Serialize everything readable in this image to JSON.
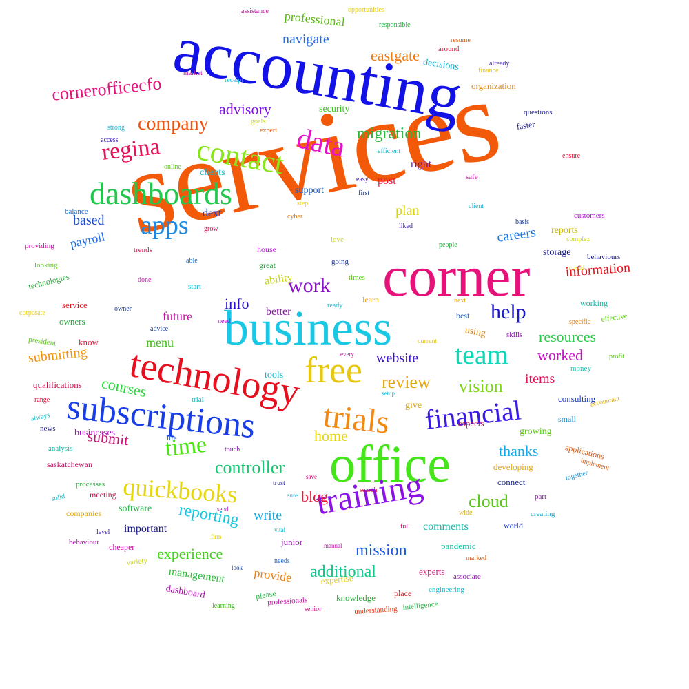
{
  "words": [
    {
      "text": "services",
      "color": "#f25a0a"
    },
    {
      "text": "accounting",
      "color": "#1212e6"
    },
    {
      "text": "corner",
      "color": "#e6127a"
    },
    {
      "text": "office",
      "color": "#44e61a"
    },
    {
      "text": "business",
      "color": "#1ac8e6"
    },
    {
      "text": "technology",
      "color": "#e60f1e"
    },
    {
      "text": "subscriptions",
      "color": "#1a3ee6"
    },
    {
      "text": "training",
      "color": "#8a12e6"
    },
    {
      "text": "free",
      "color": "#e6c812"
    },
    {
      "text": "trials",
      "color": "#f28a12"
    },
    {
      "text": "financial",
      "color": "#3a1ae6"
    },
    {
      "text": "contact",
      "color": "#8ae61a"
    },
    {
      "text": "dashboards",
      "color": "#22c84e"
    },
    {
      "text": "data",
      "color": "#e612c8"
    },
    {
      "text": "quickbooks",
      "color": "#e6d612"
    },
    {
      "text": "team",
      "color": "#12d6b8"
    },
    {
      "text": "apps",
      "color": "#1a8ae6"
    },
    {
      "text": "regina",
      "color": "#e6125a"
    },
    {
      "text": "company",
      "color": "#f2520a"
    },
    {
      "text": "cornerofficecfo",
      "color": "#e6127a"
    },
    {
      "text": "migration",
      "color": "#28b83a"
    },
    {
      "text": "work",
      "color": "#8a12c8"
    },
    {
      "text": "help",
      "color": "#1a1ac8"
    },
    {
      "text": "time",
      "color": "#4ae612"
    },
    {
      "text": "controller",
      "color": "#18c872"
    },
    {
      "text": "reporting",
      "color": "#12c8e6"
    },
    {
      "text": "cloud",
      "color": "#58c81a"
    },
    {
      "text": "review",
      "color": "#e6a812"
    },
    {
      "text": "vision",
      "color": "#7ad612"
    },
    {
      "text": "courses",
      "color": "#2ad63a"
    },
    {
      "text": "submitting",
      "color": "#f2920a"
    },
    {
      "text": "submit",
      "color": "#c8127a"
    },
    {
      "text": "info",
      "color": "#2a12c8"
    },
    {
      "text": "blog",
      "color": "#e61a3a"
    },
    {
      "text": "mission",
      "color": "#1a5ae6"
    },
    {
      "text": "additional",
      "color": "#12c88a"
    },
    {
      "text": "experience",
      "color": "#3ad612"
    },
    {
      "text": "write",
      "color": "#12a8e6"
    },
    {
      "text": "thanks",
      "color": "#1aa8e6"
    },
    {
      "text": "home",
      "color": "#e6d612"
    },
    {
      "text": "worked",
      "color": "#c812c8"
    },
    {
      "text": "items",
      "color": "#e6125a"
    },
    {
      "text": "resources",
      "color": "#28c848"
    },
    {
      "text": "information",
      "color": "#e6121a"
    },
    {
      "text": "website",
      "color": "#3a12c8"
    },
    {
      "text": "careers",
      "color": "#1a7ae6"
    },
    {
      "text": "advisory",
      "color": "#7a12e6"
    },
    {
      "text": "navigate",
      "color": "#2a6ae6"
    },
    {
      "text": "eastgate",
      "color": "#f27a0a"
    },
    {
      "text": "professional",
      "color": "#58b812"
    },
    {
      "text": "payroll",
      "color": "#1a6ae6"
    },
    {
      "text": "based",
      "color": "#1a4ac8"
    },
    {
      "text": "menu",
      "color": "#3ab812"
    },
    {
      "text": "future",
      "color": "#c812a8"
    },
    {
      "text": "plan",
      "color": "#d6d612"
    },
    {
      "text": "dext",
      "color": "#1a3ac8"
    },
    {
      "text": "provide",
      "color": "#f27a0a"
    },
    {
      "text": "management",
      "color": "#2ab83a"
    },
    {
      "text": "comments",
      "color": "#12b8a8"
    },
    {
      "text": "important",
      "color": "#1a1a8a"
    },
    {
      "text": "businesses",
      "color": "#a812c8"
    },
    {
      "text": "post",
      "color": "#e6123a"
    },
    {
      "text": "right",
      "color": "#6a12c8"
    },
    {
      "text": "better",
      "color": "#8a12a8"
    },
    {
      "text": "ability",
      "color": "#c8d612"
    },
    {
      "text": "clients",
      "color": "#12b8c8"
    },
    {
      "text": "support",
      "color": "#1a5ac8"
    },
    {
      "text": "security",
      "color": "#3ac81a"
    },
    {
      "text": "decisions",
      "color": "#12a8c8"
    },
    {
      "text": "organization",
      "color": "#d68a12"
    },
    {
      "text": "storage",
      "color": "#1a1a8a"
    },
    {
      "text": "reports",
      "color": "#c8b812"
    },
    {
      "text": "using",
      "color": "#d67a12"
    },
    {
      "text": "consulting",
      "color": "#1a3ac8"
    },
    {
      "text": "growing",
      "color": "#58c812"
    },
    {
      "text": "connect",
      "color": "#1a2a8a"
    },
    {
      "text": "developing",
      "color": "#e6a812"
    },
    {
      "text": "software",
      "color": "#28b848"
    },
    {
      "text": "dashboard",
      "color": "#a812a8"
    },
    {
      "text": "knowledge",
      "color": "#28a83a"
    },
    {
      "text": "expertise",
      "color": "#e6c812"
    },
    {
      "text": "junior",
      "color": "#8a1aa8"
    },
    {
      "text": "experts",
      "color": "#c8126a"
    },
    {
      "text": "pandemic",
      "color": "#12c8a8"
    },
    {
      "text": "place",
      "color": "#e6121a"
    },
    {
      "text": "tools",
      "color": "#12b8d6"
    },
    {
      "text": "give",
      "color": "#d6a812"
    },
    {
      "text": "aspects",
      "color": "#c8124a"
    },
    {
      "text": "world",
      "color": "#1a3ac8"
    },
    {
      "text": "part",
      "color": "#8a1aa8"
    },
    {
      "text": "small",
      "color": "#1a8ac8"
    },
    {
      "text": "applications",
      "color": "#d65a12"
    },
    {
      "text": "skills",
      "color": "#8a12a8"
    },
    {
      "text": "best",
      "color": "#1a5ac8"
    },
    {
      "text": "working",
      "color": "#12b8a8"
    },
    {
      "text": "effective",
      "color": "#58c812"
    },
    {
      "text": "money",
      "color": "#12c8b8"
    },
    {
      "text": "accountant",
      "color": "#d6a812"
    },
    {
      "text": "implement",
      "color": "#d65a12"
    },
    {
      "text": "together",
      "color": "#1a8ac8"
    },
    {
      "text": "creating",
      "color": "#12a8c8"
    },
    {
      "text": "associate",
      "color": "#8a12a8"
    },
    {
      "text": "engineering",
      "color": "#12b8d6"
    },
    {
      "text": "intelligence",
      "color": "#28b848"
    },
    {
      "text": "understanding",
      "color": "#e63a12"
    },
    {
      "text": "senior",
      "color": "#c8127a"
    },
    {
      "text": "professionals",
      "color": "#c812a8"
    },
    {
      "text": "learning",
      "color": "#3ab812"
    },
    {
      "text": "please",
      "color": "#28b848"
    },
    {
      "text": "needs",
      "color": "#1a6ac8"
    },
    {
      "text": "manual",
      "color": "#c812a8"
    },
    {
      "text": "wide",
      "color": "#d6a812"
    },
    {
      "text": "full",
      "color": "#c8126a"
    },
    {
      "text": "marked",
      "color": "#d65a12"
    },
    {
      "text": "vital",
      "color": "#12b8c8"
    },
    {
      "text": "search",
      "color": "#e6123a"
    },
    {
      "text": "save",
      "color": "#d6127a"
    },
    {
      "text": "sure",
      "color": "#12b8d6"
    },
    {
      "text": "trust",
      "color": "#1a1a8a"
    },
    {
      "text": "send",
      "color": "#a812c8"
    },
    {
      "text": "firm",
      "color": "#e6c812"
    },
    {
      "text": "look",
      "color": "#1a3a8a"
    },
    {
      "text": "touch",
      "color": "#8a1aa8"
    },
    {
      "text": "life",
      "color": "#1a5ac8"
    },
    {
      "text": "trial",
      "color": "#12b8c8"
    },
    {
      "text": "setup",
      "color": "#12b8d6"
    },
    {
      "text": "every",
      "color": "#c812a8"
    },
    {
      "text": "current",
      "color": "#e6c812"
    },
    {
      "text": "next",
      "color": "#e6a812"
    },
    {
      "text": "profit",
      "color": "#58c812"
    },
    {
      "text": "specific",
      "color": "#d67a12"
    },
    {
      "text": "behaviours",
      "color": "#1a1a8a"
    },
    {
      "text": "covid",
      "color": "#c8d612"
    },
    {
      "text": "complex",
      "color": "#c8d612"
    },
    {
      "text": "customers",
      "color": "#a812c8"
    },
    {
      "text": "basis",
      "color": "#1a3a8a"
    },
    {
      "text": "liked",
      "color": "#3a1aa8"
    },
    {
      "text": "people",
      "color": "#28a83a"
    },
    {
      "text": "client",
      "color": "#12b8d6"
    },
    {
      "text": "safe",
      "color": "#c812a8"
    },
    {
      "text": "ensure",
      "color": "#e6123a"
    },
    {
      "text": "faster",
      "color": "#1a1a8a"
    },
    {
      "text": "questions",
      "color": "#1a1a8a"
    },
    {
      "text": "already",
      "color": "#3a1aa8"
    },
    {
      "text": "finance",
      "color": "#e6c812"
    },
    {
      "text": "around",
      "color": "#e6123a"
    },
    {
      "text": "resume",
      "color": "#d65a12"
    },
    {
      "text": "opportunities",
      "color": "#e6c812"
    },
    {
      "text": "responsible",
      "color": "#28a83a"
    },
    {
      "text": "assistance",
      "color": "#c812a8"
    },
    {
      "text": "market",
      "color": "#c812a8"
    },
    {
      "text": "receipt",
      "color": "#12b8d6"
    },
    {
      "text": "goals",
      "color": "#c8d612"
    },
    {
      "text": "expert",
      "color": "#d65a12"
    },
    {
      "text": "strong",
      "color": "#12b8d6"
    },
    {
      "text": "access",
      "color": "#3a1aa8"
    },
    {
      "text": "efficient",
      "color": "#12b8c8"
    },
    {
      "text": "online",
      "color": "#58c812"
    },
    {
      "text": "easy",
      "color": "#3a1aa8"
    },
    {
      "text": "first",
      "color": "#1a3a8a"
    },
    {
      "text": "step",
      "color": "#e6c812"
    },
    {
      "text": "cyber",
      "color": "#d67a12"
    },
    {
      "text": "grow",
      "color": "#c8124a"
    },
    {
      "text": "balance",
      "color": "#1a6ac8"
    },
    {
      "text": "love",
      "color": "#c8d612"
    },
    {
      "text": "house",
      "color": "#a812c8"
    },
    {
      "text": "great",
      "color": "#28a83a"
    },
    {
      "text": "going",
      "color": "#1a3a8a"
    },
    {
      "text": "times",
      "color": "#58c812"
    },
    {
      "text": "learn",
      "color": "#e6a812"
    },
    {
      "text": "ready",
      "color": "#12b8c8"
    },
    {
      "text": "need",
      "color": "#a812c8"
    },
    {
      "text": "start",
      "color": "#12b8d6"
    },
    {
      "text": "able",
      "color": "#1a6ac8"
    },
    {
      "text": "done",
      "color": "#c812a8"
    },
    {
      "text": "trends",
      "color": "#c8124a"
    },
    {
      "text": "providing",
      "color": "#c812a8"
    },
    {
      "text": "looking",
      "color": "#58c812"
    },
    {
      "text": "technologies",
      "color": "#28a83a"
    },
    {
      "text": "corporate",
      "color": "#e6c812"
    },
    {
      "text": "service",
      "color": "#e6121a"
    },
    {
      "text": "owners",
      "color": "#28a83a"
    },
    {
      "text": "owner",
      "color": "#1a3a8a"
    },
    {
      "text": "advice",
      "color": "#1a3a8a"
    },
    {
      "text": "know",
      "color": "#e6123a"
    },
    {
      "text": "president",
      "color": "#58c812"
    },
    {
      "text": "qualifications",
      "color": "#c8124a"
    },
    {
      "text": "range",
      "color": "#e6123a"
    },
    {
      "text": "always",
      "color": "#12b8c8"
    },
    {
      "text": "news",
      "color": "#1a1a8a"
    },
    {
      "text": "analysis",
      "color": "#12b8a8"
    },
    {
      "text": "saskatchewan",
      "color": "#c8126a"
    },
    {
      "text": "processes",
      "color": "#28a83a"
    },
    {
      "text": "solid",
      "color": "#12b8c8"
    },
    {
      "text": "meeting",
      "color": "#c8124a"
    },
    {
      "text": "companies",
      "color": "#e6a812"
    },
    {
      "text": "level",
      "color": "#3a1aa8"
    },
    {
      "text": "behaviour",
      "color": "#a812a8"
    },
    {
      "text": "cheaper",
      "color": "#c812a8"
    },
    {
      "text": "variety",
      "color": "#c8d612"
    }
  ]
}
